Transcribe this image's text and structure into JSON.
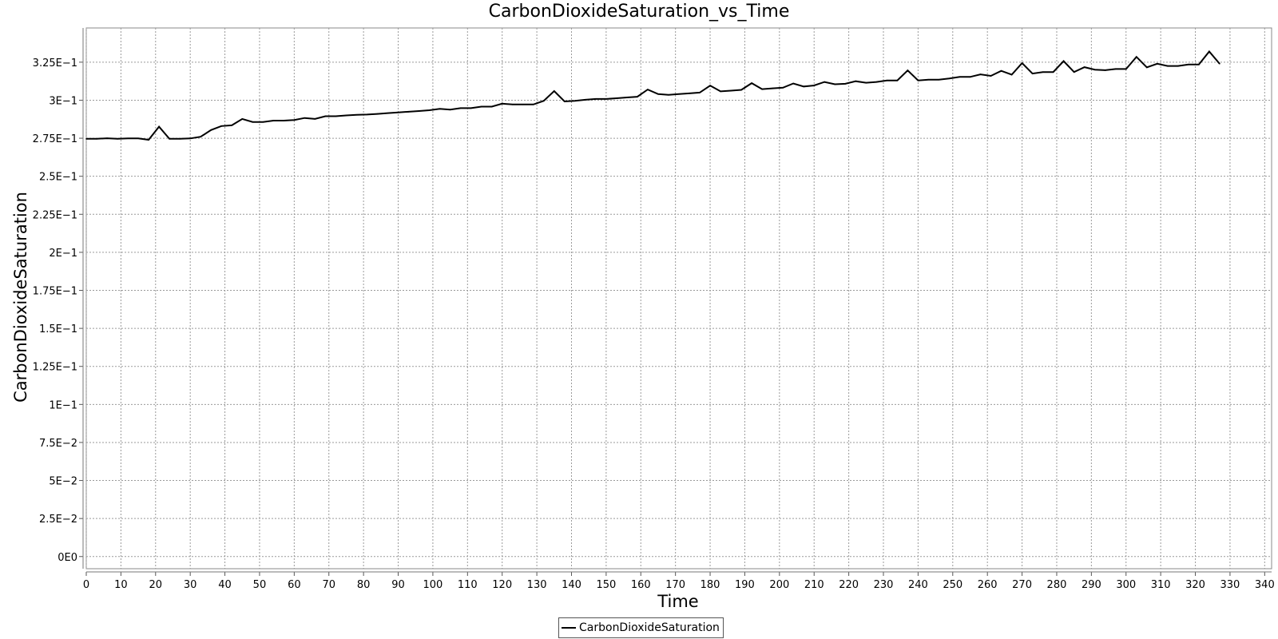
{
  "chart_data": {
    "type": "line",
    "title": "CarbonDioxideSaturation_vs_Time",
    "xlabel": "Time",
    "ylabel": "CarbonDioxideSaturation",
    "xlim": [
      0,
      342
    ],
    "ylim": [
      -0.008,
      0.3475
    ],
    "xticks": [
      0,
      10,
      20,
      30,
      40,
      50,
      60,
      70,
      80,
      90,
      100,
      110,
      120,
      130,
      140,
      150,
      160,
      170,
      180,
      190,
      200,
      210,
      220,
      230,
      240,
      250,
      260,
      270,
      280,
      290,
      300,
      310,
      320,
      330,
      340
    ],
    "xtick_labels": [
      "0",
      "10",
      "20",
      "30",
      "40",
      "50",
      "60",
      "70",
      "80",
      "90",
      "100",
      "110",
      "120",
      "130",
      "140",
      "150",
      "160",
      "170",
      "180",
      "190",
      "200",
      "210",
      "220",
      "230",
      "240",
      "250",
      "260",
      "270",
      "280",
      "290",
      "300",
      "310",
      "320",
      "330",
      "340"
    ],
    "yticks": [
      0,
      0.025,
      0.05,
      0.075,
      0.1,
      0.125,
      0.15,
      0.175,
      0.2,
      0.225,
      0.25,
      0.275,
      0.3,
      0.325
    ],
    "ytick_labels": [
      "0E0",
      "2.5E−2",
      "5E−2",
      "7.5E−2",
      "1E−1",
      "1.25E−1",
      "1.5E−1",
      "1.75E−1",
      "2E−1",
      "2.25E−1",
      "2.5E−1",
      "2.75E−1",
      "3E−1",
      "3.25E−1"
    ],
    "grid": true,
    "legend_position": "bottom-center",
    "series": [
      {
        "name": "CarbonDioxideSaturation",
        "color": "#000000",
        "x": [
          0,
          3,
          6,
          9,
          12,
          15,
          18,
          21,
          24,
          27,
          30,
          33,
          36,
          39,
          42,
          45,
          48,
          51,
          54,
          57,
          60,
          63,
          66,
          69,
          72,
          75,
          78,
          81,
          84,
          87,
          90,
          93,
          96,
          99,
          102,
          105,
          108,
          111,
          114,
          117,
          120,
          123,
          126,
          129,
          132,
          135,
          138,
          141,
          144,
          147,
          150,
          153,
          156,
          159,
          162,
          165,
          168,
          171,
          174,
          177,
          180,
          183,
          186,
          189,
          192,
          195,
          198,
          201,
          204,
          207,
          210,
          213,
          216,
          219,
          222,
          225,
          228,
          231,
          234,
          237,
          240,
          243,
          246,
          249,
          252,
          255,
          258,
          261,
          264,
          267,
          270,
          273,
          276,
          279,
          282,
          285,
          288,
          291,
          294,
          297,
          300,
          303,
          306,
          309,
          312,
          315,
          318,
          321,
          324,
          327
        ],
        "y": [
          0.2746,
          0.2746,
          0.275,
          0.2746,
          0.2749,
          0.2749,
          0.274,
          0.2826,
          0.2746,
          0.2746,
          0.2749,
          0.276,
          0.2804,
          0.283,
          0.2835,
          0.2877,
          0.2857,
          0.2857,
          0.2866,
          0.2866,
          0.287,
          0.2883,
          0.2877,
          0.2895,
          0.2895,
          0.29,
          0.2904,
          0.2906,
          0.291,
          0.2915,
          0.292,
          0.2924,
          0.2929,
          0.2934,
          0.2943,
          0.2938,
          0.2948,
          0.2948,
          0.2958,
          0.2958,
          0.2977,
          0.2972,
          0.2972,
          0.2972,
          0.2996,
          0.306,
          0.2992,
          0.2996,
          0.3003,
          0.3008,
          0.3008,
          0.3013,
          0.3018,
          0.3023,
          0.307,
          0.304,
          0.3035,
          0.304,
          0.3045,
          0.305,
          0.3096,
          0.3058,
          0.3063,
          0.3068,
          0.3112,
          0.3073,
          0.3078,
          0.3082,
          0.311,
          0.309,
          0.3097,
          0.312,
          0.3105,
          0.3108,
          0.3125,
          0.3115,
          0.312,
          0.313,
          0.313,
          0.3196,
          0.313,
          0.3135,
          0.3135,
          0.3143,
          0.3153,
          0.3153,
          0.317,
          0.316,
          0.3193,
          0.3168,
          0.3244,
          0.3175,
          0.3185,
          0.3185,
          0.3257,
          0.3185,
          0.3217,
          0.3201,
          0.3197,
          0.3205,
          0.3205,
          0.3285,
          0.3216,
          0.324,
          0.3225,
          0.3225,
          0.3235,
          0.3235,
          0.332,
          0.324
        ]
      }
    ]
  }
}
